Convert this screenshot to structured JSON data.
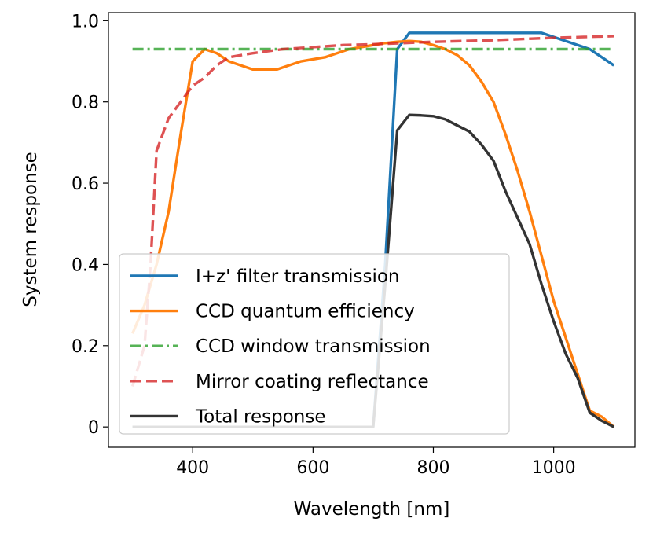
{
  "chart_data": {
    "type": "line",
    "title": "",
    "xlabel": "Wavelength [nm]",
    "ylabel": "System response",
    "xlim": [
      260,
      1135
    ],
    "ylim": [
      -0.05,
      1.02
    ],
    "xticks": [
      400,
      600,
      800,
      1000
    ],
    "yticks": [
      0,
      0.2,
      0.4,
      0.6,
      0.8,
      1.0
    ],
    "ytick_labels": [
      "0",
      "0.2",
      "0.4",
      "0.6",
      "0.8",
      "1.0"
    ],
    "xtick_labels": [
      "400",
      "600",
      "800",
      "1000"
    ],
    "grid": false,
    "legend_position": "lower-left",
    "series": [
      {
        "name": "I+z' filter transmission",
        "color": "#1f77b4",
        "style": "solid",
        "x": [
          300,
          700,
          720,
          740,
          760,
          800,
          900,
          980,
          1060,
          1100
        ],
        "y": [
          0,
          0,
          0.4,
          0.93,
          0.97,
          0.97,
          0.97,
          0.97,
          0.93,
          0.89
        ]
      },
      {
        "name": "CCD quantum efficiency",
        "color": "#ff7f0e",
        "style": "solid",
        "x": [
          300,
          320,
          340,
          360,
          380,
          400,
          420,
          440,
          460,
          480,
          500,
          520,
          540,
          560,
          580,
          600,
          620,
          640,
          660,
          680,
          700,
          720,
          740,
          760,
          780,
          800,
          820,
          840,
          860,
          880,
          900,
          920,
          940,
          960,
          980,
          1000,
          1020,
          1040,
          1060,
          1080,
          1100
        ],
        "y": [
          0.23,
          0.3,
          0.4,
          0.53,
          0.72,
          0.9,
          0.93,
          0.92,
          0.9,
          0.89,
          0.88,
          0.88,
          0.88,
          0.89,
          0.9,
          0.905,
          0.91,
          0.92,
          0.93,
          0.935,
          0.94,
          0.945,
          0.948,
          0.95,
          0.948,
          0.94,
          0.93,
          0.915,
          0.89,
          0.85,
          0.8,
          0.72,
          0.63,
          0.53,
          0.42,
          0.31,
          0.22,
          0.13,
          0.04,
          0.025,
          0.0
        ]
      },
      {
        "name": "CCD window transmission",
        "color": "#2ca02c",
        "style": "dashdot",
        "x": [
          300,
          1100
        ],
        "y": [
          0.93,
          0.93
        ]
      },
      {
        "name": "Mirror coating reflectance",
        "color": "#d62728",
        "style": "dashed",
        "x": [
          300,
          320,
          330,
          340,
          360,
          380,
          400,
          420,
          440,
          460,
          500,
          550,
          600,
          650,
          700,
          750,
          800,
          850,
          900,
          950,
          1000,
          1050,
          1100
        ],
        "y": [
          0.1,
          0.2,
          0.4,
          0.68,
          0.76,
          0.8,
          0.84,
          0.86,
          0.89,
          0.91,
          0.92,
          0.93,
          0.935,
          0.94,
          0.942,
          0.945,
          0.948,
          0.95,
          0.952,
          0.955,
          0.958,
          0.96,
          0.962
        ]
      },
      {
        "name": "Total response",
        "color": "#333333",
        "style": "solid",
        "x": [
          300,
          700,
          720,
          740,
          760,
          780,
          800,
          820,
          840,
          860,
          880,
          900,
          920,
          940,
          960,
          980,
          1000,
          1020,
          1040,
          1060,
          1080,
          1100
        ],
        "y": [
          0,
          0,
          0.35,
          0.73,
          0.768,
          0.767,
          0.765,
          0.757,
          0.742,
          0.727,
          0.695,
          0.655,
          0.58,
          0.515,
          0.45,
          0.35,
          0.26,
          0.18,
          0.12,
          0.035,
          0.015,
          0.0
        ]
      }
    ]
  }
}
